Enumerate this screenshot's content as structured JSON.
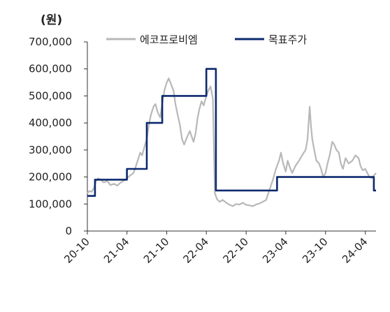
{
  "chart_data": {
    "type": "line",
    "unit_label": "(원)",
    "ylim": [
      0,
      700000
    ],
    "yticks": [
      0,
      100000,
      200000,
      300000,
      400000,
      500000,
      600000,
      700000
    ],
    "ytick_labels": [
      "0",
      "100,000",
      "200,000",
      "300,000",
      "400,000",
      "500,000",
      "600,000",
      "700,000"
    ],
    "xlim": [
      "2020-10-01",
      "2024-05-20"
    ],
    "xticks": [
      "2020-10-01",
      "2021-04-01",
      "2021-10-01",
      "2022-04-01",
      "2022-10-01",
      "2023-04-01",
      "2023-10-01",
      "2024-04-01"
    ],
    "xtick_labels": [
      "20-10",
      "21-04",
      "21-10",
      "22-04",
      "22-10",
      "23-04",
      "23-10",
      "24-04"
    ],
    "legend_position": "top",
    "grid": false,
    "series": [
      {
        "name": "에코프로비엠",
        "color": "#b8b8b8",
        "points": [
          [
            "2020-10-01",
            140000
          ],
          [
            "2020-10-10",
            148000
          ],
          [
            "2020-10-20",
            145000
          ],
          [
            "2020-11-01",
            160000
          ],
          [
            "2020-11-10",
            185000
          ],
          [
            "2020-11-20",
            195000
          ],
          [
            "2020-12-01",
            190000
          ],
          [
            "2020-12-15",
            180000
          ],
          [
            "2021-01-01",
            185000
          ],
          [
            "2021-01-15",
            170000
          ],
          [
            "2021-02-01",
            175000
          ],
          [
            "2021-02-15",
            168000
          ],
          [
            "2021-03-01",
            178000
          ],
          [
            "2021-03-15",
            185000
          ],
          [
            "2021-04-01",
            195000
          ],
          [
            "2021-04-15",
            205000
          ],
          [
            "2021-05-01",
            215000
          ],
          [
            "2021-05-10",
            235000
          ],
          [
            "2021-05-20",
            260000
          ],
          [
            "2021-06-01",
            290000
          ],
          [
            "2021-06-10",
            280000
          ],
          [
            "2021-06-20",
            310000
          ],
          [
            "2021-07-01",
            340000
          ],
          [
            "2021-07-10",
            390000
          ],
          [
            "2021-07-20",
            430000
          ],
          [
            "2021-08-01",
            460000
          ],
          [
            "2021-08-10",
            470000
          ],
          [
            "2021-08-20",
            440000
          ],
          [
            "2021-09-01",
            420000
          ],
          [
            "2021-09-10",
            470000
          ],
          [
            "2021-09-20",
            520000
          ],
          [
            "2021-10-01",
            550000
          ],
          [
            "2021-10-10",
            565000
          ],
          [
            "2021-10-20",
            545000
          ],
          [
            "2021-11-01",
            520000
          ],
          [
            "2021-11-10",
            470000
          ],
          [
            "2021-11-20",
            430000
          ],
          [
            "2021-12-01",
            390000
          ],
          [
            "2021-12-10",
            340000
          ],
          [
            "2021-12-20",
            320000
          ],
          [
            "2022-01-01",
            345000
          ],
          [
            "2022-01-15",
            370000
          ],
          [
            "2022-02-01",
            330000
          ],
          [
            "2022-02-10",
            360000
          ],
          [
            "2022-02-20",
            420000
          ],
          [
            "2022-03-01",
            455000
          ],
          [
            "2022-03-10",
            480000
          ],
          [
            "2022-03-20",
            465000
          ],
          [
            "2022-04-01",
            500000
          ],
          [
            "2022-04-10",
            520000
          ],
          [
            "2022-04-20",
            535000
          ],
          [
            "2022-05-01",
            490000
          ],
          [
            "2022-05-06",
            300000
          ],
          [
            "2022-05-10",
            140000
          ],
          [
            "2022-05-20",
            118000
          ],
          [
            "2022-06-01",
            108000
          ],
          [
            "2022-06-15",
            115000
          ],
          [
            "2022-07-01",
            105000
          ],
          [
            "2022-07-15",
            98000
          ],
          [
            "2022-08-01",
            92000
          ],
          [
            "2022-08-15",
            100000
          ],
          [
            "2022-09-01",
            98000
          ],
          [
            "2022-09-15",
            105000
          ],
          [
            "2022-10-01",
            97000
          ],
          [
            "2022-10-15",
            95000
          ],
          [
            "2022-11-01",
            92000
          ],
          [
            "2022-11-15",
            98000
          ],
          [
            "2022-12-01",
            102000
          ],
          [
            "2023-01-01",
            115000
          ],
          [
            "2023-01-15",
            150000
          ],
          [
            "2023-02-01",
            190000
          ],
          [
            "2023-02-15",
            230000
          ],
          [
            "2023-03-01",
            260000
          ],
          [
            "2023-03-10",
            290000
          ],
          [
            "2023-03-20",
            250000
          ],
          [
            "2023-04-01",
            220000
          ],
          [
            "2023-04-10",
            260000
          ],
          [
            "2023-04-20",
            235000
          ],
          [
            "2023-05-01",
            215000
          ],
          [
            "2023-05-15",
            240000
          ],
          [
            "2023-06-01",
            260000
          ],
          [
            "2023-06-15",
            280000
          ],
          [
            "2023-07-01",
            300000
          ],
          [
            "2023-07-10",
            340000
          ],
          [
            "2023-07-20",
            460000
          ],
          [
            "2023-07-26",
            390000
          ],
          [
            "2023-08-01",
            340000
          ],
          [
            "2023-08-10",
            300000
          ],
          [
            "2023-08-20",
            260000
          ],
          [
            "2023-09-01",
            250000
          ],
          [
            "2023-09-10",
            230000
          ],
          [
            "2023-09-20",
            200000
          ],
          [
            "2023-10-01",
            215000
          ],
          [
            "2023-10-10",
            250000
          ],
          [
            "2023-10-20",
            280000
          ],
          [
            "2023-11-01",
            330000
          ],
          [
            "2023-11-10",
            320000
          ],
          [
            "2023-11-20",
            300000
          ],
          [
            "2023-12-01",
            290000
          ],
          [
            "2023-12-10",
            250000
          ],
          [
            "2023-12-20",
            230000
          ],
          [
            "2024-01-01",
            270000
          ],
          [
            "2024-01-15",
            250000
          ],
          [
            "2024-02-01",
            260000
          ],
          [
            "2024-02-15",
            280000
          ],
          [
            "2024-03-01",
            270000
          ],
          [
            "2024-03-10",
            240000
          ],
          [
            "2024-03-20",
            225000
          ],
          [
            "2024-04-01",
            230000
          ],
          [
            "2024-04-10",
            215000
          ],
          [
            "2024-04-20",
            200000
          ],
          [
            "2024-05-01",
            195000
          ],
          [
            "2024-05-10",
            205000
          ],
          [
            "2024-05-20",
            215000
          ]
        ]
      },
      {
        "name": "목표주가",
        "color": "#0d2a6e",
        "step": true,
        "points": [
          [
            "2020-10-01",
            130000
          ],
          [
            "2020-11-05",
            130000
          ],
          [
            "2020-11-05",
            190000
          ],
          [
            "2021-04-01",
            190000
          ],
          [
            "2021-04-01",
            230000
          ],
          [
            "2021-07-01",
            230000
          ],
          [
            "2021-07-01",
            400000
          ],
          [
            "2021-09-10",
            400000
          ],
          [
            "2021-09-10",
            500000
          ],
          [
            "2022-04-01",
            500000
          ],
          [
            "2022-04-01",
            600000
          ],
          [
            "2022-05-15",
            600000
          ],
          [
            "2022-05-15",
            150000
          ],
          [
            "2023-02-20",
            150000
          ],
          [
            "2023-02-20",
            200000
          ],
          [
            "2024-05-10",
            200000
          ],
          [
            "2024-05-10",
            150000
          ],
          [
            "2024-05-20",
            150000
          ]
        ]
      }
    ]
  }
}
